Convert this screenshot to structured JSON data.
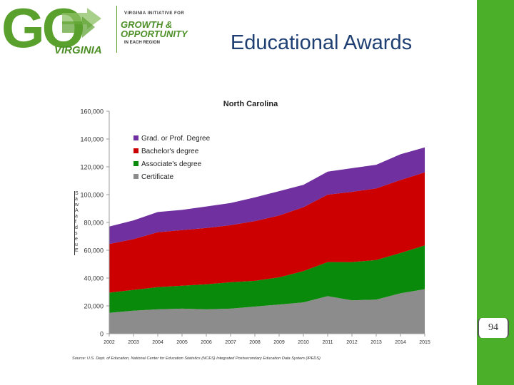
{
  "logo": {
    "go": "GO",
    "virginia": "VIRGINIA",
    "line1": "VIRGINIA INITIATIVE FOR",
    "line2": "GROWTH &",
    "line3": "OPPORTUNITY",
    "line4": "IN EACH REGION",
    "green": "#5aa02c"
  },
  "slide": {
    "title": "Educational Awards",
    "page_number": "94",
    "accent_bar_color": "#4caf2a"
  },
  "chart_data": {
    "type": "area",
    "stacked": true,
    "title": "North Carolina",
    "xlabel": "",
    "ylabel": "",
    "x": [
      "2002",
      "2003",
      "2004",
      "2005",
      "2006",
      "2007",
      "2008",
      "2009",
      "2010",
      "2011",
      "2012",
      "2013",
      "2014",
      "2015"
    ],
    "ylim": [
      0,
      160000
    ],
    "yticks": [
      "0",
      "20,000",
      "40,000",
      "60,000",
      "80,000",
      "100,000",
      "120,000",
      "140,000",
      "160,000"
    ],
    "grid": false,
    "legend_position": "top-left",
    "series": [
      {
        "name": "Certificate",
        "color": "#8c8c8c",
        "values": [
          15000,
          16500,
          17500,
          18000,
          17500,
          18000,
          19500,
          21000,
          22500,
          27000,
          24000,
          24500,
          29000,
          32000
        ]
      },
      {
        "name": "Associate's degree",
        "color": "#0a8a0a",
        "values": [
          14500,
          15000,
          16000,
          16500,
          18000,
          19000,
          18500,
          19500,
          22500,
          24500,
          27500,
          28500,
          29000,
          31500
        ]
      },
      {
        "name": "Bachelor's degree",
        "color": "#cc0000",
        "values": [
          35000,
          36500,
          39500,
          40000,
          40500,
          41000,
          43000,
          44500,
          46000,
          48500,
          50500,
          51500,
          52500,
          52500
        ]
      },
      {
        "name": "Grad. or Prof. Degree",
        "color": "#7030a0",
        "values": [
          12500,
          13500,
          14500,
          14500,
          15500,
          16000,
          17000,
          17500,
          16000,
          16500,
          17000,
          17000,
          18500,
          18000
        ]
      }
    ],
    "footnote": "Source: U.S. Dept. of Education, National Center for Education Statistics (NCES) Integrated Postsecondary Education Data System (IPEDS)"
  }
}
